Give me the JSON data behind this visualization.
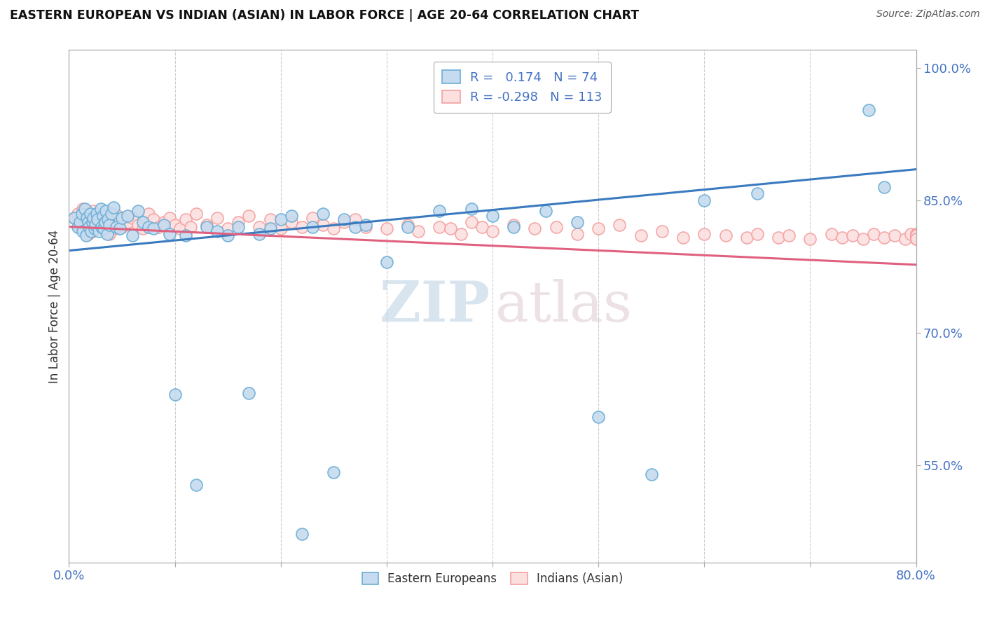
{
  "title": "EASTERN EUROPEAN VS INDIAN (ASIAN) IN LABOR FORCE | AGE 20-64 CORRELATION CHART",
  "source": "Source: ZipAtlas.com",
  "ylabel": "In Labor Force | Age 20-64",
  "xlim": [
    0.0,
    0.8
  ],
  "ylim": [
    0.44,
    1.02
  ],
  "xticks": [
    0.0,
    0.1,
    0.2,
    0.3,
    0.4,
    0.5,
    0.6,
    0.7,
    0.8
  ],
  "xticklabels": [
    "0.0%",
    "",
    "",
    "",
    "",
    "",
    "",
    "",
    "80.0%"
  ],
  "yticks_right": [
    0.55,
    0.7,
    0.85,
    1.0
  ],
  "ytick_right_labels": [
    "55.0%",
    "70.0%",
    "85.0%",
    "100.0%"
  ],
  "blue_color": "#6baed6",
  "blue_fill": "#c6dbef",
  "pink_color": "#f4a0a0",
  "pink_fill": "#fce0e0",
  "blue_line_color": "#3a7abf",
  "pink_line_color": "#e06080",
  "legend_blue_R": "0.174",
  "legend_blue_N": "74",
  "legend_pink_R": "-0.298",
  "legend_pink_N": "113",
  "blue_trend": [
    0.793,
    0.885
  ],
  "pink_trend": [
    0.82,
    0.777
  ],
  "background_color": "#ffffff",
  "grid_color": "#cccccc",
  "blue_x": [
    0.005,
    0.008,
    0.01,
    0.012,
    0.013,
    0.015,
    0.016,
    0.017,
    0.018,
    0.019,
    0.02,
    0.021,
    0.022,
    0.023,
    0.024,
    0.025,
    0.026,
    0.027,
    0.028,
    0.03,
    0.031,
    0.032,
    0.033,
    0.034,
    0.035,
    0.036,
    0.037,
    0.038,
    0.04,
    0.042,
    0.045,
    0.048,
    0.05,
    0.055,
    0.06,
    0.065,
    0.07,
    0.075,
    0.08,
    0.09,
    0.095,
    0.1,
    0.11,
    0.12,
    0.13,
    0.14,
    0.15,
    0.16,
    0.17,
    0.18,
    0.19,
    0.2,
    0.21,
    0.22,
    0.23,
    0.24,
    0.25,
    0.26,
    0.27,
    0.28,
    0.3,
    0.32,
    0.35,
    0.38,
    0.4,
    0.42,
    0.45,
    0.48,
    0.5,
    0.55,
    0.6,
    0.65,
    0.755,
    0.77
  ],
  "blue_y": [
    0.83,
    0.82,
    0.825,
    0.835,
    0.815,
    0.84,
    0.81,
    0.83,
    0.825,
    0.82,
    0.835,
    0.815,
    0.825,
    0.83,
    0.818,
    0.822,
    0.835,
    0.828,
    0.815,
    0.84,
    0.82,
    0.832,
    0.818,
    0.825,
    0.838,
    0.812,
    0.828,
    0.822,
    0.835,
    0.842,
    0.82,
    0.818,
    0.83,
    0.832,
    0.81,
    0.838,
    0.825,
    0.82,
    0.818,
    0.822,
    0.812,
    0.63,
    0.81,
    0.528,
    0.82,
    0.815,
    0.81,
    0.82,
    0.632,
    0.812,
    0.818,
    0.828,
    0.832,
    0.472,
    0.82,
    0.835,
    0.542,
    0.828,
    0.82,
    0.822,
    0.78,
    0.82,
    0.838,
    0.84,
    0.832,
    0.82,
    0.838,
    0.825,
    0.605,
    0.54,
    0.85,
    0.858,
    0.952,
    0.865
  ],
  "pink_x": [
    0.005,
    0.008,
    0.01,
    0.012,
    0.013,
    0.014,
    0.015,
    0.016,
    0.017,
    0.018,
    0.019,
    0.02,
    0.021,
    0.022,
    0.023,
    0.024,
    0.025,
    0.026,
    0.027,
    0.028,
    0.03,
    0.031,
    0.032,
    0.033,
    0.034,
    0.035,
    0.036,
    0.037,
    0.038,
    0.04,
    0.042,
    0.044,
    0.046,
    0.048,
    0.05,
    0.055,
    0.06,
    0.065,
    0.07,
    0.075,
    0.08,
    0.085,
    0.09,
    0.095,
    0.1,
    0.105,
    0.11,
    0.115,
    0.12,
    0.13,
    0.14,
    0.15,
    0.16,
    0.17,
    0.18,
    0.19,
    0.2,
    0.21,
    0.22,
    0.23,
    0.24,
    0.25,
    0.26,
    0.27,
    0.28,
    0.3,
    0.32,
    0.33,
    0.35,
    0.36,
    0.37,
    0.38,
    0.39,
    0.4,
    0.42,
    0.44,
    0.46,
    0.48,
    0.5,
    0.52,
    0.54,
    0.56,
    0.58,
    0.6,
    0.62,
    0.64,
    0.65,
    0.67,
    0.68,
    0.7,
    0.72,
    0.73,
    0.74,
    0.75,
    0.76,
    0.77,
    0.78,
    0.79,
    0.795,
    0.8,
    0.8,
    0.8,
    0.8,
    0.8,
    0.8,
    0.8,
    0.8,
    0.8,
    0.8,
    0.8,
    0.8,
    0.8,
    0.8
  ],
  "pink_y": [
    0.83,
    0.835,
    0.82,
    0.825,
    0.84,
    0.818,
    0.83,
    0.825,
    0.832,
    0.812,
    0.828,
    0.835,
    0.82,
    0.815,
    0.838,
    0.822,
    0.83,
    0.818,
    0.825,
    0.828,
    0.835,
    0.82,
    0.825,
    0.832,
    0.818,
    0.828,
    0.822,
    0.835,
    0.812,
    0.83,
    0.825,
    0.818,
    0.832,
    0.828,
    0.82,
    0.825,
    0.83,
    0.822,
    0.818,
    0.835,
    0.828,
    0.82,
    0.825,
    0.83,
    0.822,
    0.818,
    0.828,
    0.82,
    0.835,
    0.822,
    0.83,
    0.818,
    0.825,
    0.832,
    0.82,
    0.828,
    0.818,
    0.825,
    0.82,
    0.83,
    0.822,
    0.818,
    0.825,
    0.828,
    0.82,
    0.818,
    0.822,
    0.815,
    0.82,
    0.818,
    0.812,
    0.825,
    0.82,
    0.815,
    0.822,
    0.818,
    0.82,
    0.812,
    0.818,
    0.822,
    0.81,
    0.815,
    0.808,
    0.812,
    0.81,
    0.808,
    0.812,
    0.808,
    0.81,
    0.806,
    0.812,
    0.808,
    0.81,
    0.806,
    0.812,
    0.808,
    0.81,
    0.806,
    0.812,
    0.808,
    0.812,
    0.81,
    0.808,
    0.812,
    0.806,
    0.81,
    0.808,
    0.81,
    0.808,
    0.81,
    0.808,
    0.81,
    0.806
  ]
}
